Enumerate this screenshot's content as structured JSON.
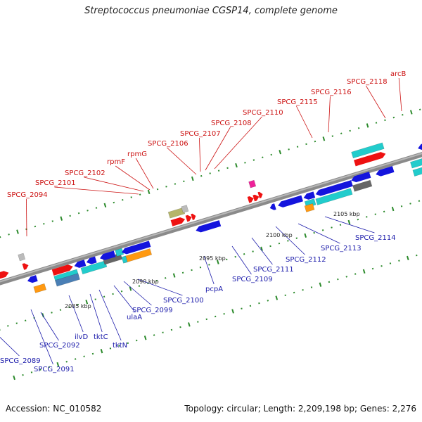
{
  "title": "Streptococcus pneumoniae CGSP14, complete genome",
  "footer": {
    "accession": "Accession: NC_010582",
    "summary": "Topology: circular; Length: 2,209,198 bp; Genes: 2,276"
  },
  "colors": {
    "backbone": "#8a8a8a",
    "tick": "#2b8a2b",
    "top_label": "#cc1111",
    "bottom_label": "#1a1aaa",
    "cds_fwd": "#ee1111",
    "cds_rev": "#1414dd",
    "cyan": "#22cccc",
    "steel": "#4a7fb5",
    "olive": "#b5b56a",
    "orange": "#ff9911",
    "grey": "#666666",
    "pink": "#ee2299",
    "silver": "#bbbbbb"
  },
  "scale_labels": [
    {
      "text": "2085 kbp"
    },
    {
      "text": "2090 kbp"
    },
    {
      "text": "2095 kbp"
    },
    {
      "text": "2100 kbp"
    },
    {
      "text": "2105 kbp"
    }
  ],
  "top_genes": [
    {
      "name": "SPCG_2094"
    },
    {
      "name": "SPCG_2101"
    },
    {
      "name": "SPCG_2102"
    },
    {
      "name": "rpmF"
    },
    {
      "name": "rpmG"
    },
    {
      "name": "SPCG_2106"
    },
    {
      "name": "SPCG_2107"
    },
    {
      "name": "SPCG_2108"
    },
    {
      "name": "SPCG_2110"
    },
    {
      "name": "SPCG_2115"
    },
    {
      "name": "SPCG_2116"
    },
    {
      "name": "SPCG_2118"
    },
    {
      "name": "arcB"
    }
  ],
  "bottom_genes": [
    {
      "name": "SPCG_2089"
    },
    {
      "name": "SPCG_2091"
    },
    {
      "name": "SPCG_2092"
    },
    {
      "name": "ilvD"
    },
    {
      "name": "tktC"
    },
    {
      "name": "tktN"
    },
    {
      "name": "ulaA"
    },
    {
      "name": "SPCG_2099"
    },
    {
      "name": "SPCG_2100"
    },
    {
      "name": "pcpA"
    },
    {
      "name": "SPCG_2109"
    },
    {
      "name": "SPCG_2111"
    },
    {
      "name": "SPCG_2112"
    },
    {
      "name": "SPCG_2113"
    },
    {
      "name": "SPCG_2114"
    }
  ]
}
